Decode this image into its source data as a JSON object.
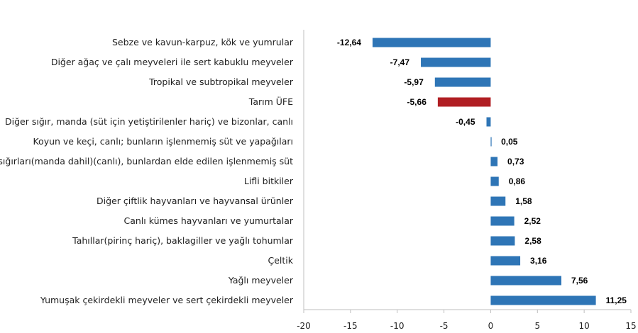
{
  "chart_data": {
    "type": "bar",
    "orientation": "horizontal",
    "title": "",
    "xlabel": "",
    "ylabel": "",
    "xlim": [
      -20,
      15
    ],
    "xticks": [
      -20,
      -15,
      -10,
      -5,
      0,
      5,
      10,
      15
    ],
    "xtick_labels": [
      "-20",
      "-15",
      "-10",
      "-5",
      "0",
      "5",
      "10",
      "15"
    ],
    "grid": false,
    "legend": "none",
    "categories": [
      "Sebze ve kavun-karpuz, kök ve yumrular",
      "Diğer ağaç ve çalı meyveleri ile sert kabuklu meyveler",
      "Tropikal ve subtropikal meyveler",
      "Tarım ÜFE",
      "Diğer sığır, manda (süt için yetiştirilenler hariç) ve bizonlar, canlı",
      "Koyun ve keçi, canlı; bunların işlenmemiş süt ve yapağıları",
      "Süt sığırları(manda dahil)(canlı), bunlardan elde edilen işlenmemiş süt",
      "Lifli bitkiler",
      "Diğer çiftlik hayvanları ve hayvansal ürünler",
      "Canlı kümes hayvanları ve yumurtalar",
      "Tahıllar(pirinç hariç), baklagiller ve yağlı tohumlar",
      "Çeltik",
      "Yağlı meyveler",
      "Yumuşak çekirdekli meyveler ve sert çekirdekli meyveler"
    ],
    "values": [
      -12.64,
      -7.47,
      -5.97,
      -5.66,
      -0.45,
      0.05,
      0.73,
      0.86,
      1.58,
      2.52,
      2.58,
      3.16,
      7.56,
      11.25
    ],
    "value_labels": [
      "-12,64",
      "-7,47",
      "-5,97",
      "-5,66",
      "-0,45",
      "0,05",
      "0,73",
      "0,86",
      "1,58",
      "2,52",
      "2,58",
      "3,16",
      "7,56",
      "11,25"
    ],
    "highlight_index": 3,
    "colors": {
      "bar": "#2e75b6",
      "highlight": "#b01e23",
      "axis": "#bfbfbf"
    }
  }
}
